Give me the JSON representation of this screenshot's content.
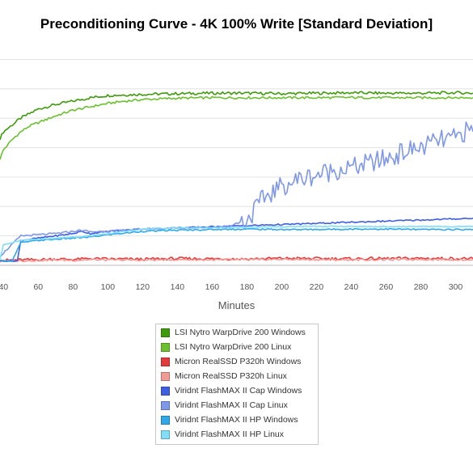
{
  "chart_data": {
    "type": "line",
    "title": "Preconditioning Curve - 4K 100% Write [Standard Deviation]",
    "xlabel": "Minutes",
    "ylabel": "",
    "xlim": [
      38,
      310
    ],
    "ylim": [
      0,
      1000
    ],
    "x_ticks": [
      "40",
      "60",
      "80",
      "100",
      "120",
      "140",
      "160",
      "180",
      "200",
      "220",
      "240",
      "260",
      "280",
      "300"
    ],
    "grid": true,
    "legend_position": "bottom-center",
    "series": [
      {
        "name": "LSI Nytro WarpDrive 200 Windows",
        "color": "#3f9a0e",
        "x": [
          38,
          40,
          45,
          50,
          55,
          60,
          70,
          80,
          90,
          100,
          120,
          140,
          160,
          180,
          200,
          220,
          240,
          260,
          280,
          300,
          310
        ],
        "y": [
          560,
          590,
          620,
          650,
          670,
          690,
          710,
          725,
          740,
          750,
          755,
          758,
          760,
          760,
          758,
          760,
          762,
          760,
          760,
          762,
          760
        ]
      },
      {
        "name": "LSI Nytro WarpDrive 200 Linux",
        "color": "#6cc030",
        "x": [
          38,
          40,
          45,
          50,
          55,
          60,
          70,
          80,
          90,
          100,
          110,
          120,
          140,
          160,
          180,
          200,
          220,
          240,
          260,
          280,
          300,
          310
        ],
        "y": [
          470,
          510,
          555,
          590,
          615,
          630,
          660,
          685,
          700,
          715,
          725,
          732,
          738,
          740,
          740,
          740,
          740,
          741,
          740,
          740,
          740,
          740
        ]
      },
      {
        "name": "Micron RealSSD P320h Windows",
        "color": "#e33b3b",
        "x": [
          38,
          50,
          60,
          70,
          80,
          90,
          100,
          120,
          140,
          160,
          180,
          200,
          220,
          240,
          260,
          280,
          300,
          310
        ],
        "y": [
          22,
          24,
          25,
          28,
          26,
          30,
          28,
          27,
          30,
          29,
          28,
          31,
          30,
          29,
          30,
          31,
          30,
          30
        ]
      },
      {
        "name": "Micron RealSSD P320h Linux",
        "color": "#f29a96",
        "x": [
          38,
          50,
          60,
          70,
          80,
          90,
          100,
          120,
          140,
          160,
          180,
          200,
          220,
          240,
          260,
          280,
          300,
          310
        ],
        "y": [
          18,
          20,
          22,
          24,
          22,
          25,
          24,
          23,
          25,
          24,
          25,
          26,
          25,
          24,
          25,
          26,
          25,
          25
        ]
      },
      {
        "name": "Viridnt FlashMAX II Cap Windows",
        "color": "#3f5fe0",
        "x": [
          38,
          48,
          50,
          60,
          70,
          80,
          85,
          90,
          100,
          120,
          140,
          160,
          180,
          200,
          220,
          240,
          260,
          280,
          300,
          310
        ],
        "y": [
          20,
          20,
          110,
          120,
          130,
          140,
          150,
          140,
          150,
          160,
          165,
          170,
          175,
          180,
          185,
          190,
          195,
          200,
          205,
          208
        ]
      },
      {
        "name": "Viridnt FlashMAX II Cap Linux",
        "color": "#7f97e8",
        "x": [
          38,
          50,
          60,
          70,
          80,
          85,
          90,
          100,
          120,
          140,
          160,
          170,
          180,
          190,
          200,
          210,
          220,
          230,
          240,
          250,
          260,
          270,
          280,
          290,
          300,
          305,
          310
        ],
        "y": [
          40,
          130,
          135,
          140,
          150,
          155,
          148,
          150,
          160,
          165,
          168,
          175,
          200,
          300,
          350,
          380,
          400,
          420,
          430,
          450,
          470,
          500,
          520,
          550,
          560,
          590,
          590
        ]
      },
      {
        "name": "Viridnt FlashMAX II HP Windows",
        "color": "#30a8e8",
        "x": [
          38,
          45,
          50,
          60,
          70,
          80,
          90,
          100,
          120,
          140,
          160,
          180,
          200,
          220,
          240,
          260,
          280,
          300,
          310
        ],
        "y": [
          20,
          20,
          100,
          110,
          115,
          120,
          125,
          135,
          150,
          155,
          158,
          160,
          158,
          158,
          160,
          160,
          158,
          158,
          158
        ]
      },
      {
        "name": "Viridnt FlashMAX II HP Linux",
        "color": "#80def8",
        "x": [
          38,
          40,
          45,
          50,
          60,
          70,
          80,
          90,
          100,
          120,
          140,
          160,
          180,
          200,
          220,
          240,
          260,
          280,
          300,
          310
        ],
        "y": [
          30,
          90,
          100,
          110,
          115,
          120,
          125,
          130,
          140,
          160,
          165,
          165,
          168,
          170,
          172,
          172,
          170,
          172,
          170,
          172
        ]
      }
    ]
  }
}
